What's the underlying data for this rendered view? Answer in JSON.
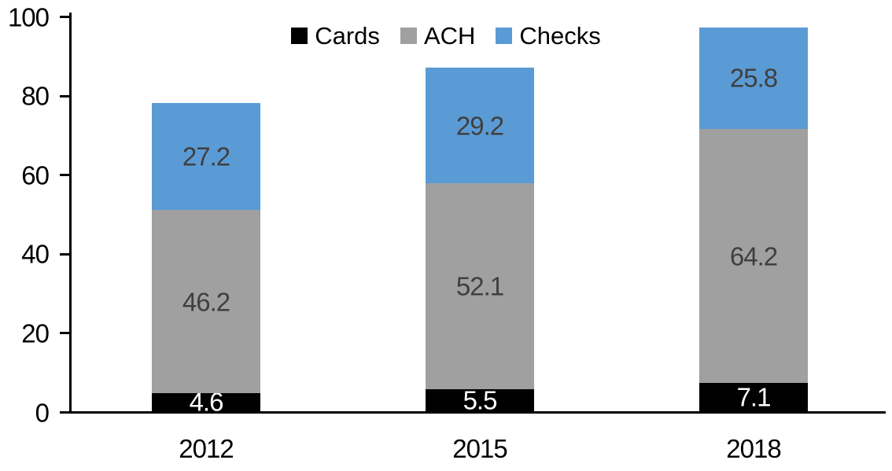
{
  "chart_data": {
    "type": "bar",
    "stacked": true,
    "title": "",
    "categories": [
      "2012",
      "2015",
      "2018"
    ],
    "series": [
      {
        "name": "Cards",
        "color": "#000000",
        "label_color": "#ffffff",
        "values": [
          4.6,
          5.5,
          7.1
        ]
      },
      {
        "name": "ACH",
        "color": "#a0a0a0",
        "label_color": "#3f3f3f",
        "values": [
          46.2,
          52.1,
          64.2
        ]
      },
      {
        "name": "Checks",
        "color": "#5b9bd5",
        "label_color": "#3f3f3f",
        "values": [
          27.2,
          29.2,
          25.8
        ]
      }
    ],
    "ylim": [
      0,
      100
    ],
    "yticks": [
      0,
      20,
      40,
      60,
      80,
      100
    ],
    "grid": false,
    "legend_position": "top-center",
    "axis_color": "#000000",
    "tick_label_color": "#000000",
    "value_label_decimals": 1
  }
}
